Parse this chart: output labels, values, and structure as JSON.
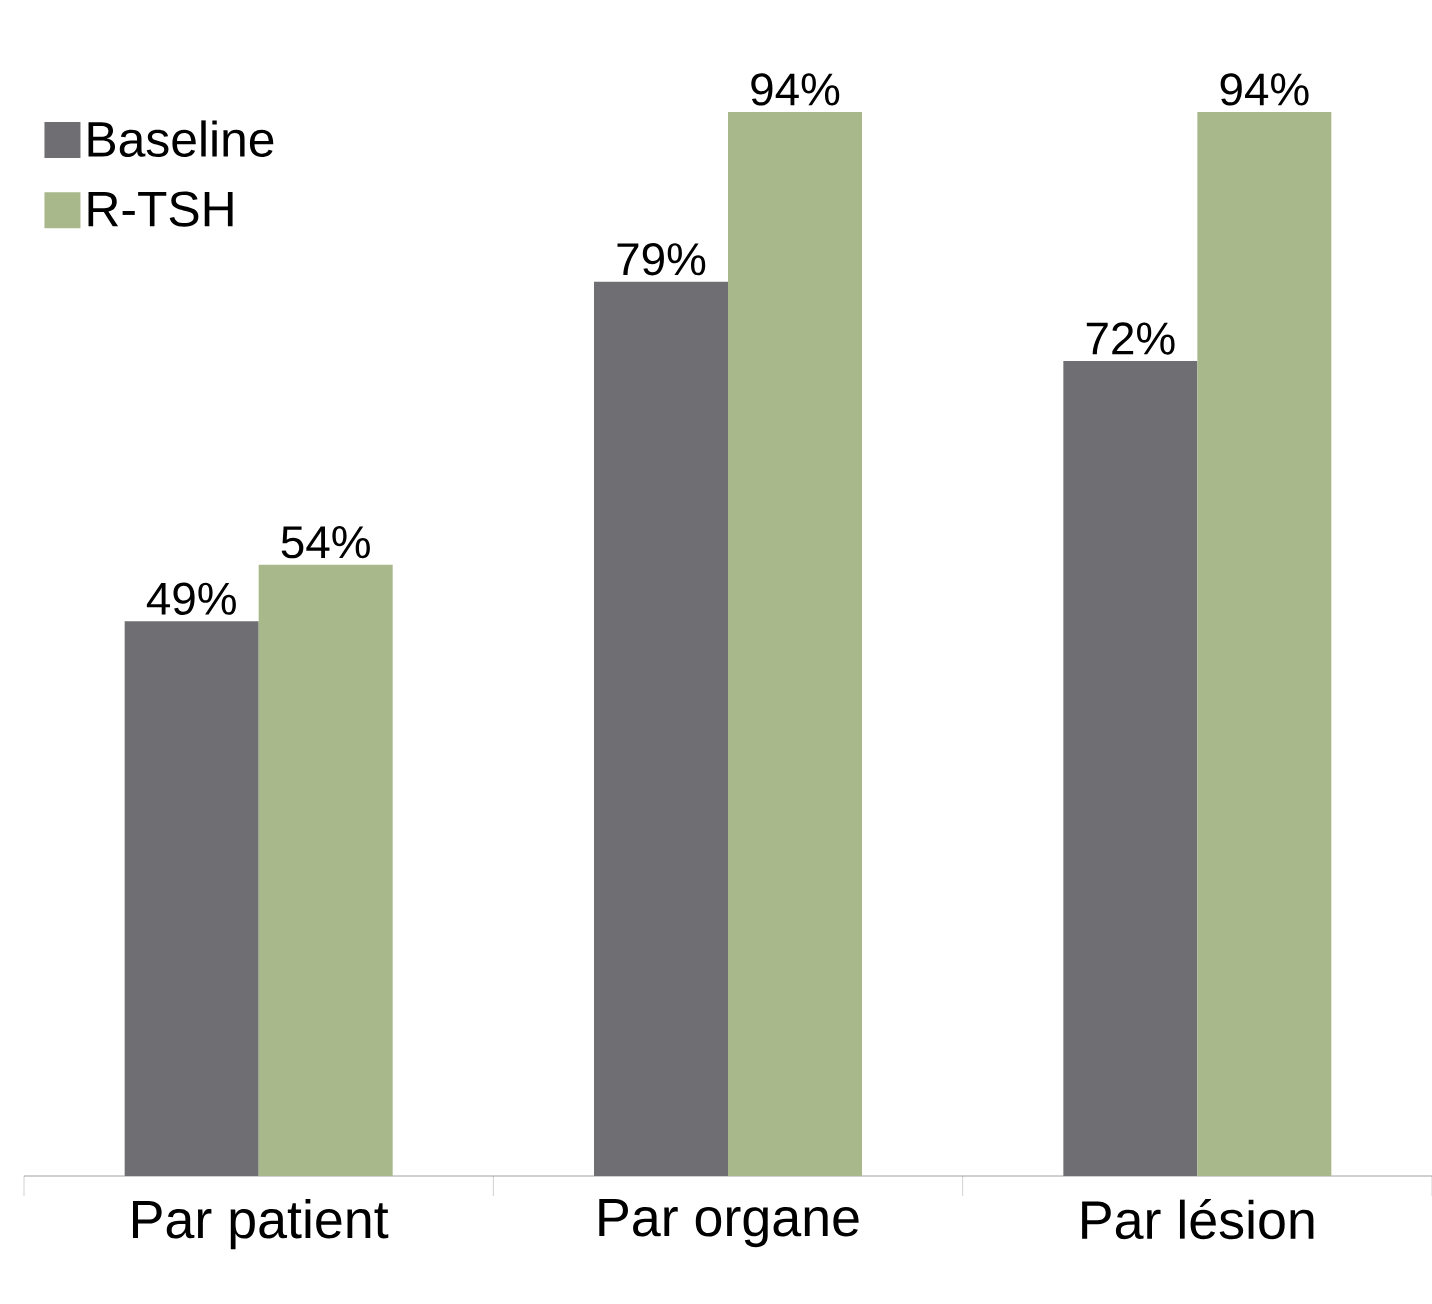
{
  "chart_data": {
    "type": "bar",
    "categories": [
      "Par patient",
      "Par organe",
      "Par lésion"
    ],
    "series": [
      {
        "name": "Baseline",
        "color": "#6f6e73",
        "values": [
          49,
          79,
          72
        ],
        "value_labels": [
          "49%",
          "79%",
          "72%"
        ]
      },
      {
        "name": "R-TSH",
        "color": "#a8b88a",
        "values": [
          54,
          94,
          94
        ],
        "value_labels": [
          "54%",
          "94%",
          "94%"
        ]
      }
    ],
    "tick_labels": "x",
    "grid": false,
    "legend": "top left"
  }
}
